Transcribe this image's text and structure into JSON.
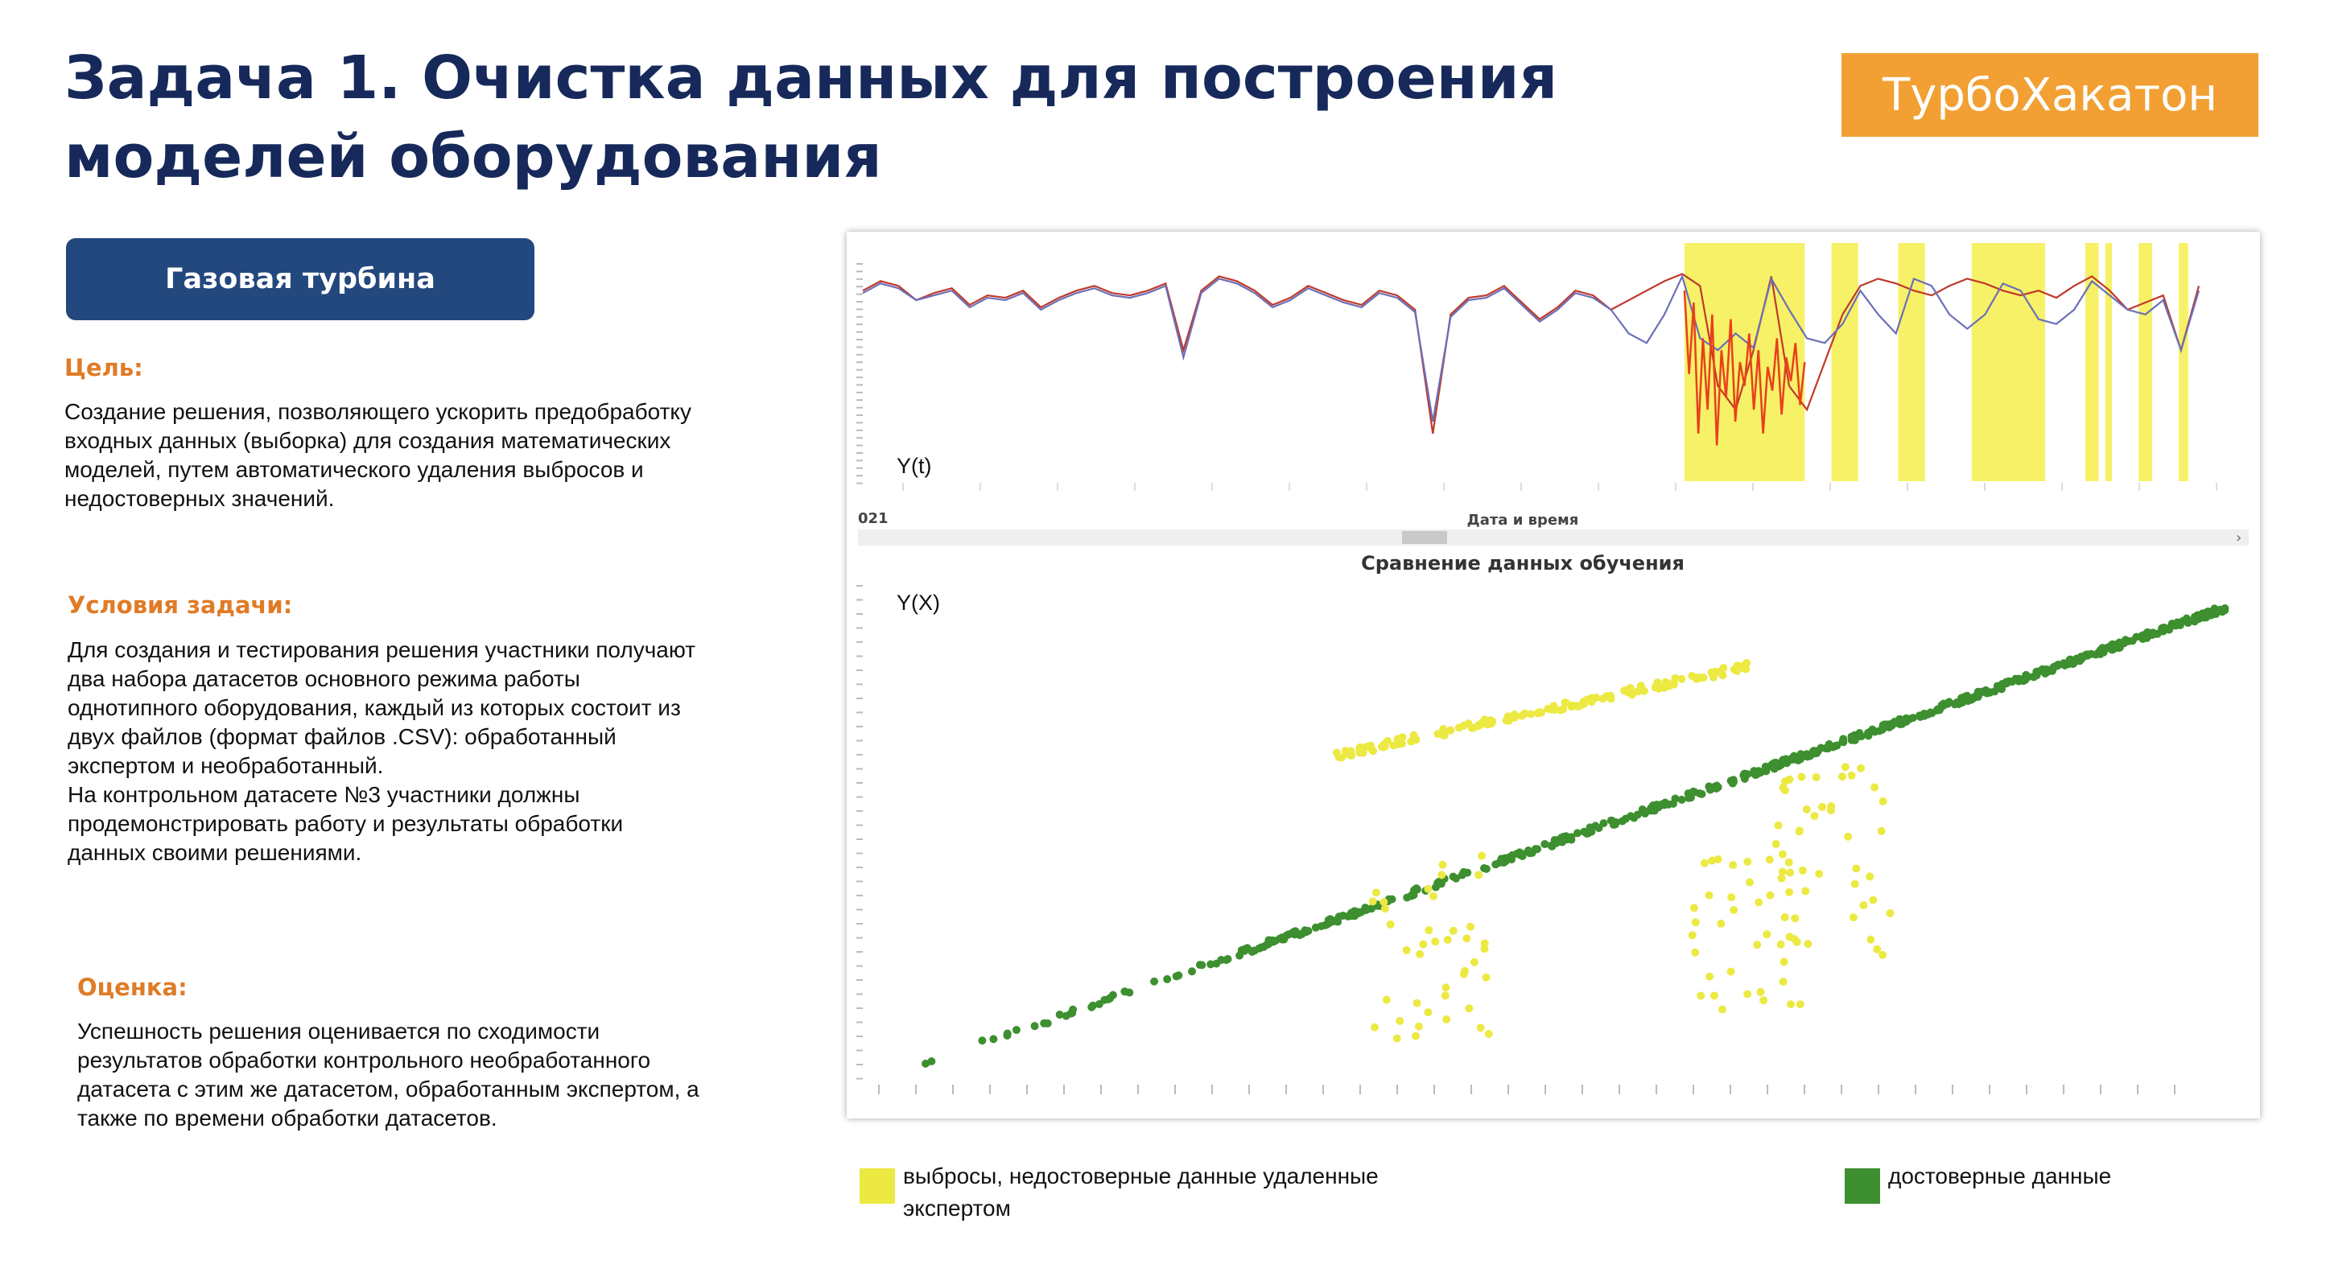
{
  "title": "Задача 1. Очистка данных для построения моделей оборудования",
  "brand": "ТурбоХакатон",
  "equipment_button": "Газовая турбина",
  "goal": {
    "heading": "Цель:",
    "lines": [
      "Создание решения, позволяющего ускорить предобработку",
      "входных данных (выборка) для создания математических",
      "моделей, путем автоматического удаления выбросов и",
      "недостоверных значений."
    ]
  },
  "conditions": {
    "heading": "Условия задачи:",
    "lines": [
      "Для создания и тестирования решения участники получают",
      "два набора датасетов основного режима работы",
      "однотипного оборудования, каждый из которых состоит из",
      "двух файлов (формат файлов .CSV): обработанный",
      "экспертом и необработанный.",
      "На контрольном датасете №3 участники должны",
      "продемонстрировать работу и результаты обработки",
      "данных своими решениями."
    ]
  },
  "evaluation": {
    "heading": "Оценка:",
    "lines": [
      "Успешность решения оценивается по сходимости",
      "результатов обработки контрольного необработанного",
      "датасета с этим же датасетом, обработанным экспертом, а",
      "также по времени обработки датасетов."
    ]
  },
  "colors": {
    "title": "#16295a",
    "brand_bg": "#f2a033",
    "button_bg": "#23487e",
    "heading": "#e07b26",
    "outlier_yellow": "#ece943",
    "valid_green": "#3d8f2f"
  },
  "chart_data": [
    {
      "type": "line",
      "title": "",
      "label": "Y(t)",
      "xlabel": "Дата и время",
      "x_tick_partial": "021",
      "series": [
        {
          "color": "#c0392b",
          "values": [
            0.8,
            0.84,
            0.82,
            0.76,
            0.79,
            0.81,
            0.74,
            0.78,
            0.77,
            0.8,
            0.73,
            0.77,
            0.8,
            0.82,
            0.79,
            0.78,
            0.8,
            0.83,
            0.55,
            0.8,
            0.86,
            0.84,
            0.8,
            0.74,
            0.77,
            0.82,
            0.79,
            0.76,
            0.74,
            0.8,
            0.78,
            0.72,
            0.2,
            0.7,
            0.77,
            0.78,
            0.82,
            0.75,
            0.68,
            0.73,
            0.8,
            0.78,
            0.72,
            0.76,
            0.8,
            0.84,
            0.87,
            0.82,
            0.4,
            0.3,
            0.55,
            0.86,
            0.4,
            0.3,
            0.5,
            0.7,
            0.82,
            0.85,
            0.83,
            0.8,
            0.78,
            0.82,
            0.85,
            0.83,
            0.8,
            0.78,
            0.8,
            0.77,
            0.82,
            0.86,
            0.8,
            0.72,
            0.75,
            0.78,
            0.55,
            0.82
          ]
        },
        {
          "color": "#6b6fb8",
          "values": [
            0.79,
            0.83,
            0.81,
            0.76,
            0.78,
            0.8,
            0.73,
            0.77,
            0.76,
            0.79,
            0.72,
            0.76,
            0.79,
            0.81,
            0.78,
            0.77,
            0.79,
            0.82,
            0.52,
            0.79,
            0.85,
            0.83,
            0.79,
            0.73,
            0.76,
            0.81,
            0.78,
            0.75,
            0.73,
            0.79,
            0.77,
            0.71,
            0.25,
            0.69,
            0.76,
            0.77,
            0.81,
            0.74,
            0.67,
            0.72,
            0.79,
            0.77,
            0.72,
            0.62,
            0.58,
            0.7,
            0.86,
            0.6,
            0.55,
            0.62,
            0.56,
            0.85,
            0.72,
            0.6,
            0.58,
            0.66,
            0.8,
            0.7,
            0.62,
            0.85,
            0.82,
            0.7,
            0.64,
            0.7,
            0.83,
            0.8,
            0.68,
            0.66,
            0.72,
            0.84,
            0.78,
            0.72,
            0.7,
            0.76,
            0.55,
            0.8
          ]
        },
        {
          "color": "#e8401c",
          "values": [
            0.8,
            0.45,
            0.75,
            0.2,
            0.6,
            0.3,
            0.7,
            0.15,
            0.55,
            0.35,
            0.68,
            0.25,
            0.5,
            0.4,
            0.62,
            0.3,
            0.55,
            0.2,
            0.48,
            0.38,
            0.6,
            0.28,
            0.52,
            0.42,
            0.58,
            0.32,
            0.5
          ]
        }
      ],
      "highlight_bands": [
        [
          0.615,
          0.705
        ],
        [
          0.725,
          0.745
        ],
        [
          0.775,
          0.795
        ],
        [
          0.83,
          0.885
        ],
        [
          0.915,
          0.925
        ],
        [
          0.93,
          0.935
        ],
        [
          0.955,
          0.965
        ],
        [
          0.985,
          0.992
        ]
      ]
    },
    {
      "type": "scatter",
      "title": "Сравнение данных обучения",
      "label": "Y(X)",
      "series": [
        {
          "name": "достоверные данные",
          "color": "#3d8f2f",
          "x_range": [
            0.02,
            1.0
          ],
          "y_range": [
            0.04,
            0.96
          ],
          "trend": "linear"
        },
        {
          "name": "выбросы, недостоверные данные удаленные экспертом",
          "color": "#ece943",
          "band": {
            "x_range": [
              0.33,
              0.64
            ],
            "y_range": [
              0.66,
              0.84
            ]
          },
          "clusters": [
            [
              0.4,
              0.28
            ],
            [
              0.64,
              0.34
            ],
            [
              0.7,
              0.45
            ]
          ]
        }
      ]
    }
  ],
  "legend": {
    "outliers_lines": [
      "выбросы, недостоверные данные удаленные",
      "экспертом"
    ],
    "valid": "достоверные данные"
  }
}
